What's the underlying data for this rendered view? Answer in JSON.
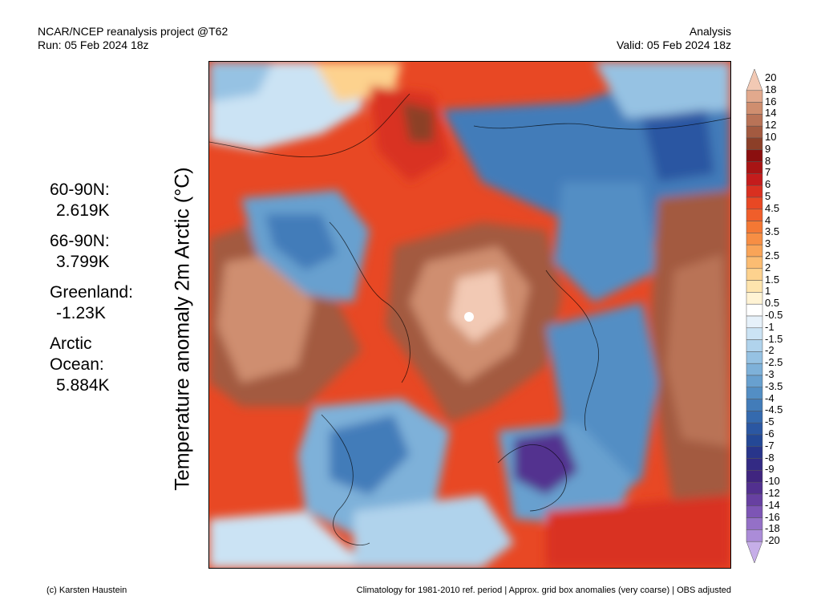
{
  "header": {
    "left_line1": "NCAR/NCEP reanalysis project @T62",
    "left_line2": "Run: 05 Feb 2024 18z",
    "right_line1": "Analysis",
    "right_line2": "Valid: 05 Feb 2024 18z"
  },
  "y_axis_label": "Temperature anomaly 2m Arctic (°C)",
  "stats": [
    {
      "label": "60-90N:",
      "value": "2.619K"
    },
    {
      "label": "66-90N:",
      "value": "3.799K"
    },
    {
      "label": "Greenland:",
      "value": "-1.23K"
    },
    {
      "label": "Arctic\nOcean:",
      "value": "5.884K"
    }
  ],
  "colorbar": {
    "levels": [
      "20",
      "18",
      "16",
      "14",
      "12",
      "10",
      "9",
      "8",
      "7",
      "6",
      "5",
      "4.5",
      "4",
      "3.5",
      "3",
      "2.5",
      "2",
      "1.5",
      "1",
      "0.5",
      "-0.5",
      "-1",
      "-1.5",
      "-2",
      "-2.5",
      "-3",
      "-3.5",
      "-4",
      "-4.5",
      "-5",
      "-6",
      "-7",
      "-8",
      "-9",
      "-10",
      "-12",
      "-14",
      "-16",
      "-18",
      "-20"
    ],
    "colors": [
      "#f2c9b4",
      "#e2a98d",
      "#cf8e6f",
      "#b97357",
      "#a35a40",
      "#8c3f28",
      "#8b0f0f",
      "#a81414",
      "#c41c1c",
      "#d93020",
      "#e84824",
      "#f05e2a",
      "#f47834",
      "#f78e44",
      "#f9a458",
      "#fbbc72",
      "#fdd28e",
      "#fee4ad",
      "#fff3d4",
      "#ffffff",
      "#e6f1fa",
      "#cbe3f4",
      "#b0d3ec",
      "#96c2e3",
      "#7eb1d9",
      "#68a0cf",
      "#538ec4",
      "#427cb9",
      "#356aae",
      "#2b57a2",
      "#244896",
      "#28358b",
      "#332a84",
      "#40257f",
      "#52308f",
      "#6740a1",
      "#7d55b5",
      "#9470c7",
      "#ab8cd8",
      "#c6aee8"
    ]
  },
  "footer": {
    "left": "(c) Karsten Haustein",
    "right": "Climatology for 1981-2010 ref. period | Approx. grid box anomalies (very coarse) | OBS adjusted"
  }
}
